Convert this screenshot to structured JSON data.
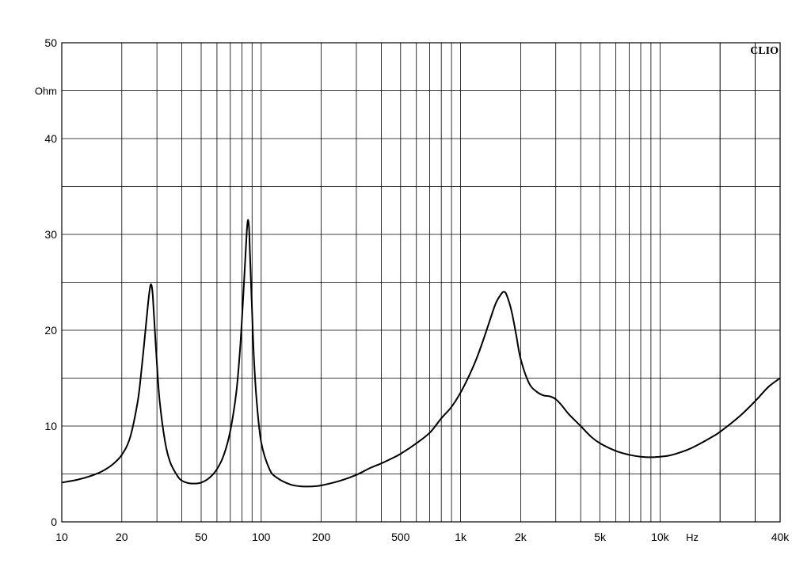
{
  "chart_data": {
    "type": "line",
    "title": "",
    "brand": "CLIO",
    "xlabel": "Hz",
    "ylabel": "Ohm",
    "x_scale": "log",
    "xlim": [
      10,
      40000
    ],
    "ylim": [
      0,
      50
    ],
    "grid": true,
    "x_tick_labels": [
      {
        "value": 10,
        "label": "10"
      },
      {
        "value": 20,
        "label": "20"
      },
      {
        "value": 50,
        "label": "50"
      },
      {
        "value": 100,
        "label": "100"
      },
      {
        "value": 200,
        "label": "200"
      },
      {
        "value": 500,
        "label": "500"
      },
      {
        "value": 1000,
        "label": "1k"
      },
      {
        "value": 2000,
        "label": "2k"
      },
      {
        "value": 5000,
        "label": "5k"
      },
      {
        "value": 10000,
        "label": "10k"
      },
      {
        "value": 40000,
        "label": "40k"
      }
    ],
    "y_tick_labels": [
      {
        "value": 0,
        "label": "0"
      },
      {
        "value": 10,
        "label": "10"
      },
      {
        "value": 20,
        "label": "20"
      },
      {
        "value": 30,
        "label": "30"
      },
      {
        "value": 40,
        "label": "40"
      },
      {
        "value": 50,
        "label": "50"
      }
    ],
    "series": [
      {
        "color": "#000000",
        "x": [
          10,
          12,
          14,
          16,
          18,
          20,
          22,
          24,
          25,
          26,
          27,
          27.5,
          28,
          28.5,
          29,
          30,
          31,
          33,
          35,
          38,
          40,
          43,
          46,
          50,
          55,
          60,
          65,
          70,
          75,
          78,
          80,
          82,
          84,
          85,
          86,
          87,
          88,
          90,
          92,
          95,
          100,
          110,
          120,
          140,
          160,
          180,
          200,
          250,
          300,
          350,
          400,
          450,
          500,
          600,
          700,
          800,
          900,
          1000,
          1100,
          1200,
          1300,
          1400,
          1500,
          1600,
          1650,
          1700,
          1800,
          1900,
          2000,
          2200,
          2400,
          2600,
          2800,
          3000,
          3200,
          3500,
          4000,
          4500,
          5000,
          6000,
          7000,
          8000,
          9000,
          10000,
          11000,
          12000,
          14000,
          16000,
          18000,
          20000,
          25000,
          30000,
          35000,
          40000
        ],
        "y": [
          4.1,
          4.4,
          4.8,
          5.3,
          6.0,
          7.0,
          8.8,
          12.5,
          15.5,
          19.0,
          22.5,
          24.0,
          24.8,
          24.0,
          21.5,
          16.5,
          12.5,
          8.3,
          6.2,
          4.8,
          4.3,
          4.05,
          4.0,
          4.1,
          4.6,
          5.5,
          7.0,
          9.5,
          13.5,
          17.5,
          21.0,
          25.0,
          29.0,
          30.8,
          31.5,
          30.5,
          27.5,
          22.0,
          17.0,
          12.5,
          8.3,
          5.5,
          4.6,
          3.9,
          3.7,
          3.7,
          3.8,
          4.3,
          4.9,
          5.6,
          6.1,
          6.6,
          7.1,
          8.2,
          9.3,
          10.8,
          12.0,
          13.5,
          15.2,
          17.0,
          19.0,
          21.0,
          22.8,
          23.8,
          24.0,
          23.7,
          22.0,
          19.5,
          17.0,
          14.5,
          13.6,
          13.2,
          13.1,
          12.8,
          12.2,
          11.2,
          10.0,
          8.9,
          8.2,
          7.4,
          7.0,
          6.8,
          6.75,
          6.8,
          6.9,
          7.1,
          7.6,
          8.2,
          8.8,
          9.4,
          11.0,
          12.6,
          14.1,
          15.0
        ]
      }
    ]
  }
}
